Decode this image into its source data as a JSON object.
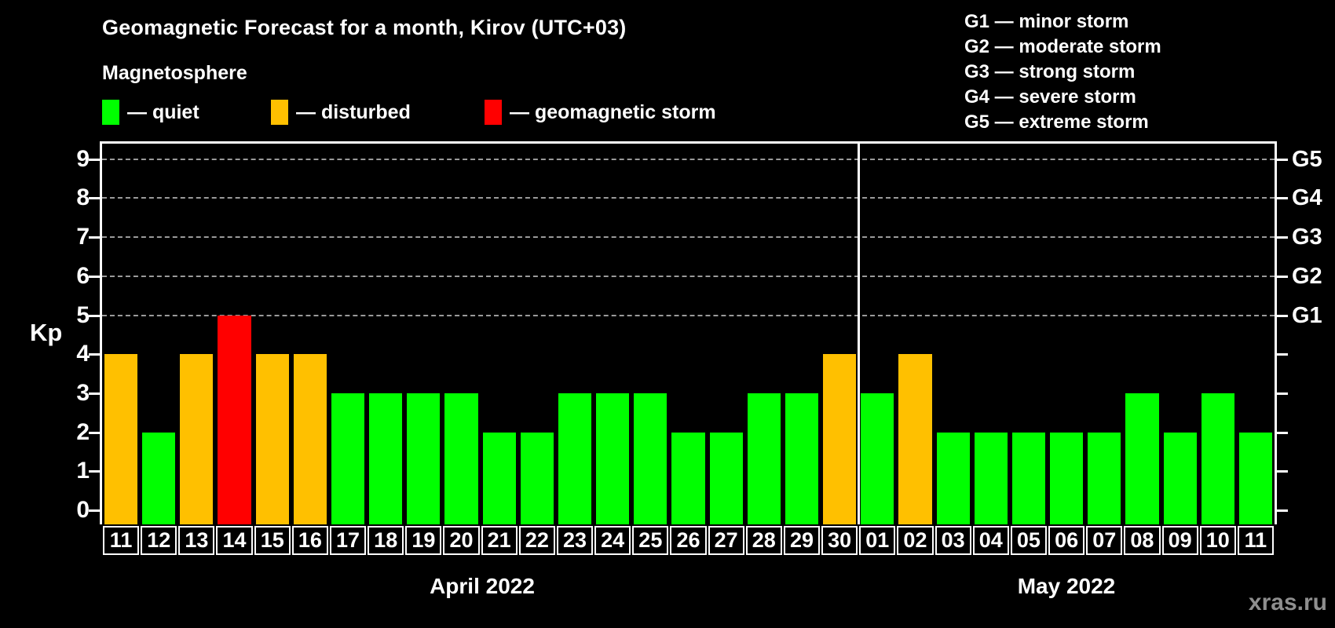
{
  "title": "Geomagnetic Forecast for a month, Kirov (UTC+03)",
  "subtitle": "Magnetosphere",
  "legend": {
    "items": [
      {
        "status": "quiet",
        "label": "— quiet"
      },
      {
        "status": "disturbed",
        "label": "— disturbed"
      },
      {
        "status": "storm",
        "label": "— geomagnetic storm"
      }
    ]
  },
  "g_legend": [
    "G1 — minor storm",
    "G2 — moderate storm",
    "G3 — strong storm",
    "G4 — severe storm",
    "G5 — extreme storm"
  ],
  "watermark": "xras.ru",
  "colors": {
    "quiet": "#00ff00",
    "disturbed": "#ffc000",
    "storm": "#ff0000",
    "grid": "#9a9a9a",
    "axis": "#ffffff",
    "watermark": "#8f8f8f",
    "background": "#000000"
  },
  "chart_data": {
    "type": "bar",
    "title": "Geomagnetic Forecast for a month, Kirov (UTC+03)",
    "ylabel_left": "Kp",
    "ylim": [
      0,
      9
    ],
    "yticks_left": [
      0,
      1,
      2,
      3,
      4,
      5,
      6,
      7,
      8,
      9
    ],
    "yticks_right": [
      {
        "value": 5,
        "label": "G1"
      },
      {
        "value": 6,
        "label": "G2"
      },
      {
        "value": 7,
        "label": "G3"
      },
      {
        "value": 8,
        "label": "G4"
      },
      {
        "value": 9,
        "label": "G5"
      }
    ],
    "gridline_values": [
      5,
      6,
      7,
      8,
      9
    ],
    "grid": "dashed horizontal lines at storm levels only",
    "legend_position": "top",
    "months": [
      {
        "label": "April 2022",
        "days": [
          {
            "day": "11",
            "kp": 4,
            "status": "disturbed"
          },
          {
            "day": "12",
            "kp": 2,
            "status": "quiet"
          },
          {
            "day": "13",
            "kp": 4,
            "status": "disturbed"
          },
          {
            "day": "14",
            "kp": 5,
            "status": "storm"
          },
          {
            "day": "15",
            "kp": 4,
            "status": "disturbed"
          },
          {
            "day": "16",
            "kp": 4,
            "status": "disturbed"
          },
          {
            "day": "17",
            "kp": 3,
            "status": "quiet"
          },
          {
            "day": "18",
            "kp": 3,
            "status": "quiet"
          },
          {
            "day": "19",
            "kp": 3,
            "status": "quiet"
          },
          {
            "day": "20",
            "kp": 3,
            "status": "quiet"
          },
          {
            "day": "21",
            "kp": 2,
            "status": "quiet"
          },
          {
            "day": "22",
            "kp": 2,
            "status": "quiet"
          },
          {
            "day": "23",
            "kp": 3,
            "status": "quiet"
          },
          {
            "day": "24",
            "kp": 3,
            "status": "quiet"
          },
          {
            "day": "25",
            "kp": 3,
            "status": "quiet"
          },
          {
            "day": "26",
            "kp": 2,
            "status": "quiet"
          },
          {
            "day": "27",
            "kp": 2,
            "status": "quiet"
          },
          {
            "day": "28",
            "kp": 3,
            "status": "quiet"
          },
          {
            "day": "29",
            "kp": 3,
            "status": "quiet"
          },
          {
            "day": "30",
            "kp": 4,
            "status": "disturbed"
          }
        ]
      },
      {
        "label": "May 2022",
        "days": [
          {
            "day": "01",
            "kp": 3,
            "status": "quiet"
          },
          {
            "day": "02",
            "kp": 4,
            "status": "disturbed"
          },
          {
            "day": "03",
            "kp": 2,
            "status": "quiet"
          },
          {
            "day": "04",
            "kp": 2,
            "status": "quiet"
          },
          {
            "day": "05",
            "kp": 2,
            "status": "quiet"
          },
          {
            "day": "06",
            "kp": 2,
            "status": "quiet"
          },
          {
            "day": "07",
            "kp": 2,
            "status": "quiet"
          },
          {
            "day": "08",
            "kp": 3,
            "status": "quiet"
          },
          {
            "day": "09",
            "kp": 2,
            "status": "quiet"
          },
          {
            "day": "10",
            "kp": 3,
            "status": "quiet"
          },
          {
            "day": "11",
            "kp": 2,
            "status": "quiet"
          }
        ]
      }
    ]
  }
}
